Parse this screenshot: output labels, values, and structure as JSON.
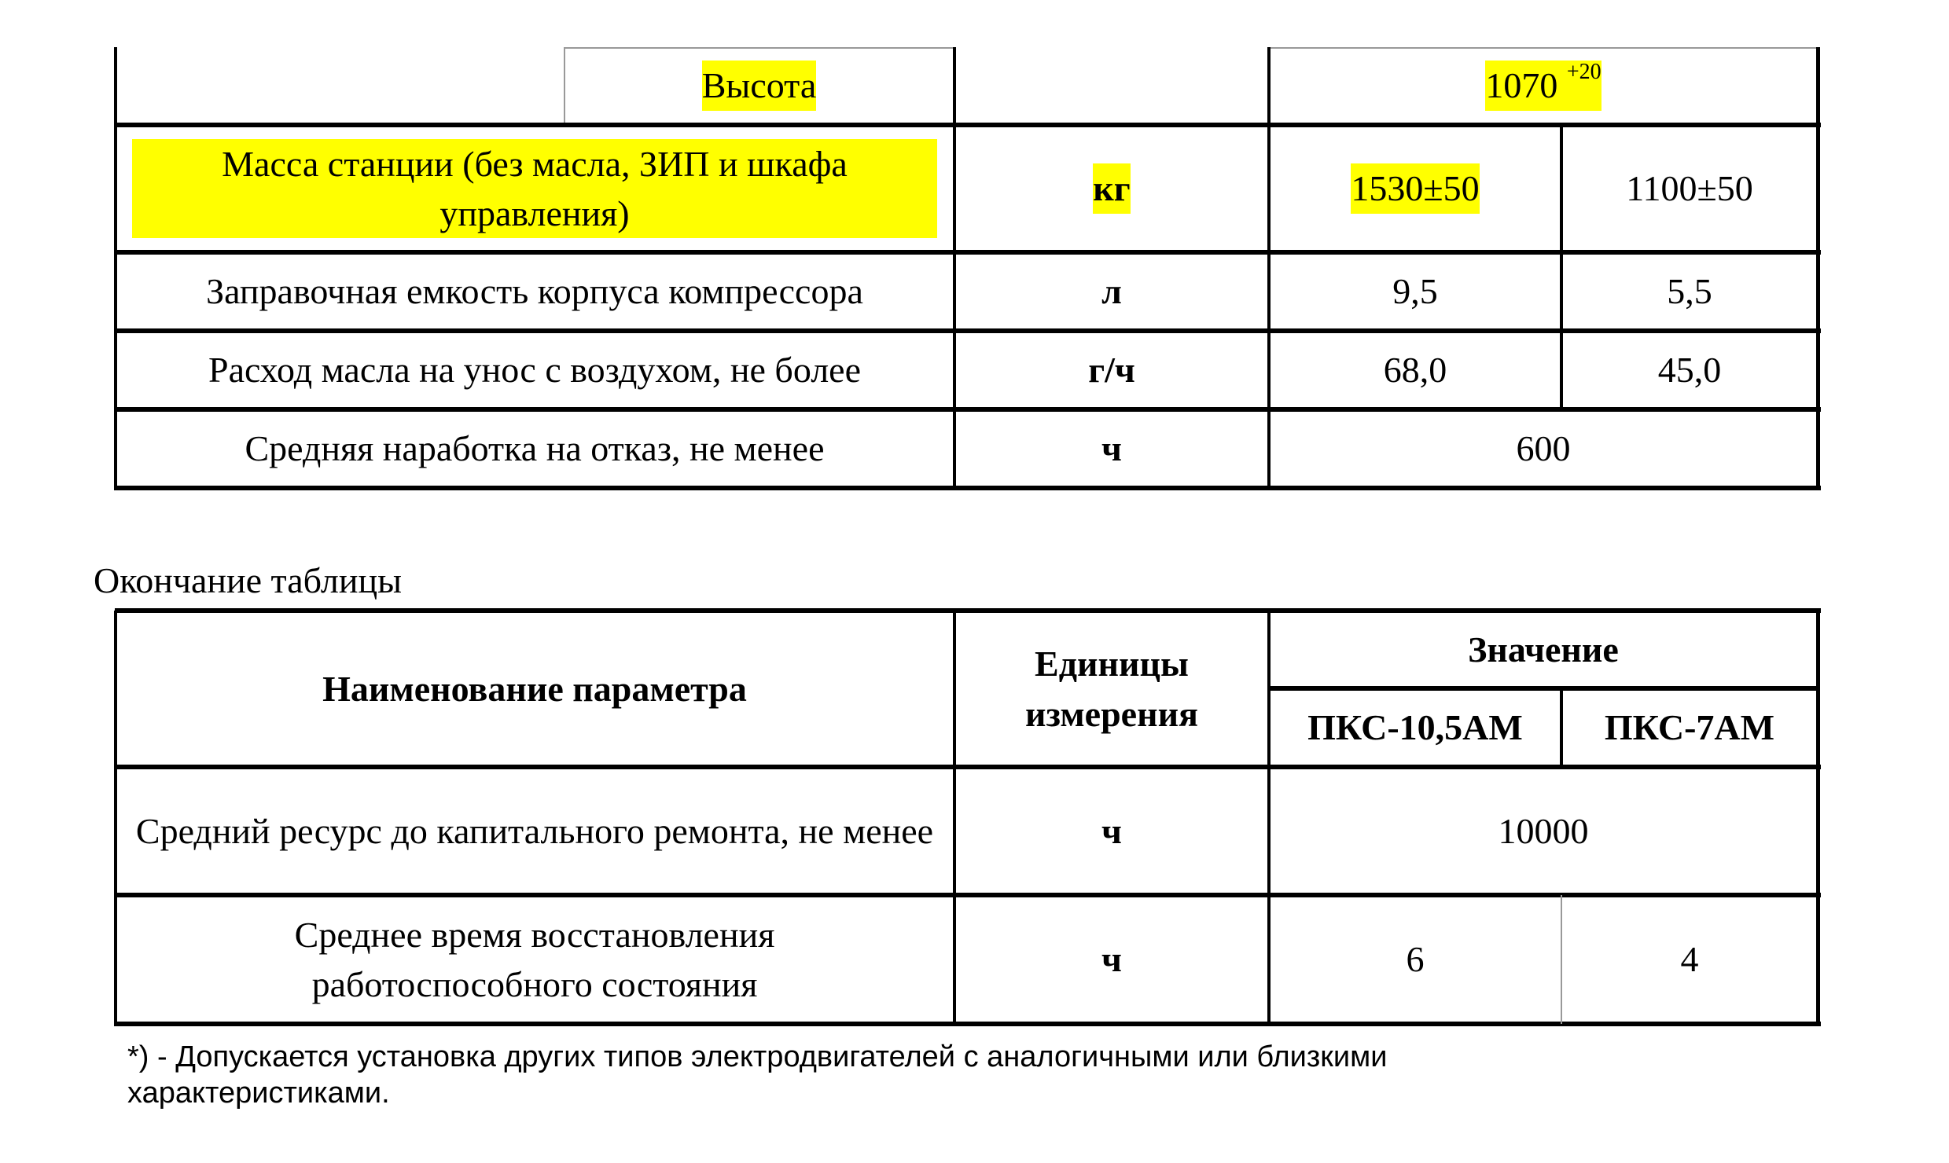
{
  "table_top": {
    "rows": [
      {
        "param": "Высота",
        "unit": "",
        "value_merged": "1070",
        "value_sup": "+20"
      },
      {
        "param": "Масса станции (без масла, ЗИП и шкафа управления)",
        "unit": "кг",
        "values": [
          "1530±50",
          "1100±50"
        ]
      },
      {
        "param": "Заправочная емкость корпуса компрессора",
        "unit": "л",
        "values": [
          "9,5",
          "5,5"
        ]
      },
      {
        "param": "Расход масла на унос с воздухом, не более",
        "unit": "г/ч",
        "values": [
          "68,0",
          "45,0"
        ]
      },
      {
        "param": "Средняя наработка на отказ, не менее",
        "unit": "ч",
        "value_merged": "600"
      }
    ],
    "highlight_color": "#ffff00"
  },
  "caption": "Окончание таблицы",
  "table_bottom": {
    "header": {
      "param": "Наименование параметра",
      "unit": "Единицы измерения",
      "value": "Значение",
      "models": [
        "ПКС-10,5АМ",
        "ПКС-7АМ"
      ]
    },
    "rows": [
      {
        "param": "Средний ресурс до капитального ремонта, не менее",
        "unit": "ч",
        "value_merged": "10000"
      },
      {
        "param": "Среднее время восстановления работоспособного состояния",
        "unit": "ч",
        "values": [
          "6",
          "4"
        ]
      }
    ]
  },
  "footnote": "*) - Допускается установка других типов электродвигателей с аналогичными или близкими характеристиками."
}
